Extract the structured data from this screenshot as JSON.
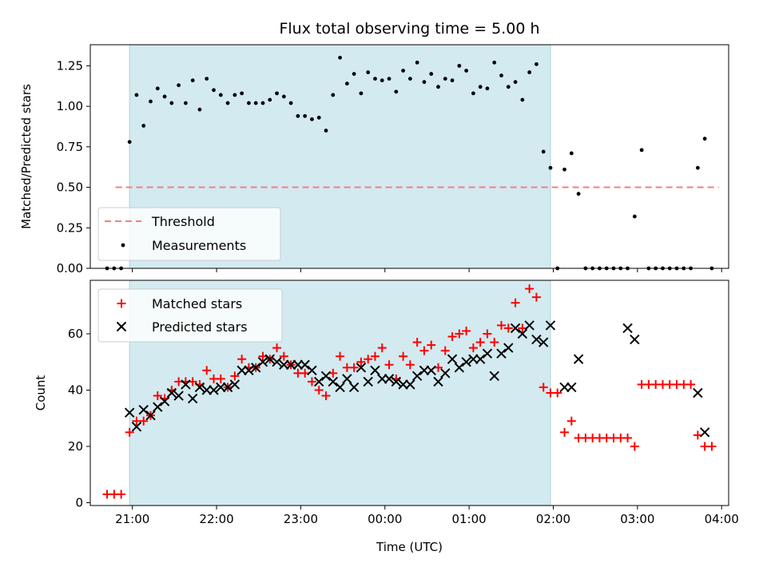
{
  "colors": {
    "observing_shade": "#d3eaf0",
    "threshold": "#f08080",
    "matched": "#ff0000",
    "predicted": "#000000",
    "measurement": "#000000"
  },
  "chart_data": [
    {
      "type": "scatter",
      "title": "Flux total observing time = 5.00 h",
      "xlabel": "",
      "ylabel": "Matched/Predicted stars",
      "xlim": [
        "20:30",
        "04:05"
      ],
      "ylim": [
        0,
        1.38
      ],
      "x_ticks": [
        "21:00",
        "22:00",
        "23:00",
        "00:00",
        "01:00",
        "02:00",
        "03:00",
        "04:00"
      ],
      "y_ticks": [
        "0.00",
        "0.25",
        "0.50",
        "0.75",
        "1.00",
        "1.25"
      ],
      "shaded_span": [
        "20:58",
        "01:58"
      ],
      "threshold": {
        "name": "Threshold",
        "y": 0.5,
        "x_range": [
          "20:48",
          "03:58"
        ]
      },
      "legend_position": "lower-left",
      "series": [
        {
          "name": "Measurements",
          "points": [
            [
              "20:42",
              0
            ],
            [
              "20:47",
              0
            ],
            [
              "20:52",
              0
            ],
            [
              "20:58",
              0.78
            ],
            [
              "21:03",
              1.07
            ],
            [
              "21:08",
              0.88
            ],
            [
              "21:13",
              1.03
            ],
            [
              "21:18",
              1.11
            ],
            [
              "21:23",
              1.06
            ],
            [
              "21:28",
              1.02
            ],
            [
              "21:33",
              1.13
            ],
            [
              "21:38",
              1.02
            ],
            [
              "21:43",
              1.16
            ],
            [
              "21:48",
              0.98
            ],
            [
              "21:53",
              1.17
            ],
            [
              "21:58",
              1.1
            ],
            [
              "22:03",
              1.07
            ],
            [
              "22:08",
              1.02
            ],
            [
              "22:13",
              1.07
            ],
            [
              "22:18",
              1.08
            ],
            [
              "22:23",
              1.02
            ],
            [
              "22:28",
              1.02
            ],
            [
              "22:33",
              1.02
            ],
            [
              "22:38",
              1.04
            ],
            [
              "22:43",
              1.08
            ],
            [
              "22:48",
              1.06
            ],
            [
              "22:53",
              1.02
            ],
            [
              "22:58",
              0.94
            ],
            [
              "23:03",
              0.94
            ],
            [
              "23:08",
              0.92
            ],
            [
              "23:13",
              0.93
            ],
            [
              "23:18",
              0.85
            ],
            [
              "23:23",
              1.07
            ],
            [
              "23:28",
              1.3
            ],
            [
              "23:33",
              1.14
            ],
            [
              "23:38",
              1.2
            ],
            [
              "23:43",
              1.08
            ],
            [
              "23:48",
              1.21
            ],
            [
              "23:53",
              1.17
            ],
            [
              "23:58",
              1.16
            ],
            [
              "00:03",
              1.17
            ],
            [
              "00:08",
              1.09
            ],
            [
              "00:13",
              1.22
            ],
            [
              "00:18",
              1.17
            ],
            [
              "00:23",
              1.27
            ],
            [
              "00:28",
              1.15
            ],
            [
              "00:33",
              1.2
            ],
            [
              "00:38",
              1.12
            ],
            [
              "00:43",
              1.17
            ],
            [
              "00:48",
              1.16
            ],
            [
              "00:53",
              1.25
            ],
            [
              "00:58",
              1.22
            ],
            [
              "01:03",
              1.08
            ],
            [
              "01:08",
              1.12
            ],
            [
              "01:13",
              1.11
            ],
            [
              "01:18",
              1.27
            ],
            [
              "01:23",
              1.19
            ],
            [
              "01:28",
              1.12
            ],
            [
              "01:33",
              1.15
            ],
            [
              "01:38",
              1.04
            ],
            [
              "01:43",
              1.21
            ],
            [
              "01:48",
              1.26
            ],
            [
              "01:53",
              0.72
            ],
            [
              "01:58",
              0.62
            ],
            [
              "02:03",
              0
            ],
            [
              "02:08",
              0.61
            ],
            [
              "02:13",
              0.71
            ],
            [
              "02:18",
              0.46
            ],
            [
              "02:23",
              0
            ],
            [
              "02:28",
              0
            ],
            [
              "02:33",
              0
            ],
            [
              "02:38",
              0
            ],
            [
              "02:43",
              0
            ],
            [
              "02:48",
              0
            ],
            [
              "02:53",
              0
            ],
            [
              "02:58",
              0.32
            ],
            [
              "03:03",
              0.73
            ],
            [
              "03:08",
              0
            ],
            [
              "03:13",
              0
            ],
            [
              "03:18",
              0
            ],
            [
              "03:23",
              0
            ],
            [
              "03:28",
              0
            ],
            [
              "03:33",
              0
            ],
            [
              "03:38",
              0
            ],
            [
              "03:43",
              0.62
            ],
            [
              "03:48",
              0.8
            ],
            [
              "03:53",
              0
            ]
          ]
        }
      ]
    },
    {
      "type": "scatter",
      "title": "",
      "xlabel": "Time (UTC)",
      "ylabel": "Count",
      "xlim": [
        "20:30",
        "04:05"
      ],
      "ylim": [
        -1,
        79
      ],
      "x_ticks": [
        "21:00",
        "22:00",
        "23:00",
        "00:00",
        "01:00",
        "02:00",
        "03:00",
        "04:00"
      ],
      "y_ticks": [
        "0",
        "20",
        "40",
        "60"
      ],
      "shaded_span": [
        "20:58",
        "01:58"
      ],
      "legend_position": "upper-left",
      "series": [
        {
          "name": "Matched stars",
          "marker": "plus",
          "points": [
            [
              "20:42",
              3
            ],
            [
              "20:47",
              3
            ],
            [
              "20:52",
              3
            ],
            [
              "20:58",
              25
            ],
            [
              "21:03",
              29
            ],
            [
              "21:08",
              29
            ],
            [
              "21:13",
              31
            ],
            [
              "21:18",
              38
            ],
            [
              "21:23",
              37
            ],
            [
              "21:28",
              40
            ],
            [
              "21:33",
              43
            ],
            [
              "21:38",
              43
            ],
            [
              "21:43",
              43
            ],
            [
              "21:48",
              42
            ],
            [
              "21:53",
              47
            ],
            [
              "21:58",
              44
            ],
            [
              "22:03",
              44
            ],
            [
              "22:08",
              41
            ],
            [
              "22:13",
              45
            ],
            [
              "22:18",
              51
            ],
            [
              "22:23",
              48
            ],
            [
              "22:28",
              48
            ],
            [
              "22:33",
              52
            ],
            [
              "22:38",
              51
            ],
            [
              "22:43",
              55
            ],
            [
              "22:48",
              52
            ],
            [
              "22:53",
              49
            ],
            [
              "22:58",
              46
            ],
            [
              "23:03",
              46
            ],
            [
              "23:08",
              43
            ],
            [
              "23:13",
              40
            ],
            [
              "23:18",
              38
            ],
            [
              "23:23",
              46
            ],
            [
              "23:28",
              52
            ],
            [
              "23:33",
              48
            ],
            [
              "23:38",
              48
            ],
            [
              "23:43",
              50
            ],
            [
              "23:48",
              51
            ],
            [
              "23:53",
              52
            ],
            [
              "23:58",
              55
            ],
            [
              "00:03",
              49
            ],
            [
              "00:08",
              44
            ],
            [
              "00:13",
              52
            ],
            [
              "00:18",
              49
            ],
            [
              "00:23",
              57
            ],
            [
              "00:28",
              54
            ],
            [
              "00:33",
              56
            ],
            [
              "00:38",
              48
            ],
            [
              "00:43",
              54
            ],
            [
              "00:48",
              59
            ],
            [
              "00:53",
              60
            ],
            [
              "00:58",
              61
            ],
            [
              "01:03",
              55
            ],
            [
              "01:08",
              57
            ],
            [
              "01:13",
              60
            ],
            [
              "01:18",
              57
            ],
            [
              "01:23",
              63
            ],
            [
              "01:28",
              62
            ],
            [
              "01:33",
              71
            ],
            [
              "01:38",
              62
            ],
            [
              "01:43",
              76
            ],
            [
              "01:48",
              73
            ],
            [
              "01:53",
              41
            ],
            [
              "01:58",
              39
            ],
            [
              "02:03",
              39
            ],
            [
              "02:08",
              25
            ],
            [
              "02:13",
              29
            ],
            [
              "02:18",
              23
            ],
            [
              "02:23",
              23
            ],
            [
              "02:28",
              23
            ],
            [
              "02:33",
              23
            ],
            [
              "02:38",
              23
            ],
            [
              "02:43",
              23
            ],
            [
              "02:48",
              23
            ],
            [
              "02:53",
              23
            ],
            [
              "02:58",
              20
            ],
            [
              "03:03",
              42
            ],
            [
              "03:08",
              42
            ],
            [
              "03:13",
              42
            ],
            [
              "03:18",
              42
            ],
            [
              "03:23",
              42
            ],
            [
              "03:28",
              42
            ],
            [
              "03:33",
              42
            ],
            [
              "03:38",
              42
            ],
            [
              "03:43",
              24
            ],
            [
              "03:48",
              20
            ],
            [
              "03:53",
              20
            ]
          ]
        },
        {
          "name": "Predicted stars",
          "marker": "x",
          "points": [
            [
              "20:58",
              32
            ],
            [
              "21:03",
              27
            ],
            [
              "21:08",
              33
            ],
            [
              "21:13",
              31
            ],
            [
              "21:18",
              34
            ],
            [
              "21:23",
              36
            ],
            [
              "21:28",
              39
            ],
            [
              "21:33",
              38
            ],
            [
              "21:38",
              42
            ],
            [
              "21:43",
              37
            ],
            [
              "21:48",
              41
            ],
            [
              "21:53",
              40
            ],
            [
              "21:58",
              40
            ],
            [
              "22:03",
              41
            ],
            [
              "22:08",
              41
            ],
            [
              "22:13",
              42
            ],
            [
              "22:18",
              47
            ],
            [
              "22:23",
              47
            ],
            [
              "22:28",
              48
            ],
            [
              "22:33",
              50
            ],
            [
              "22:38",
              51
            ],
            [
              "22:43",
              50
            ],
            [
              "22:48",
              49
            ],
            [
              "22:53",
              49
            ],
            [
              "22:58",
              49
            ],
            [
              "23:03",
              49
            ],
            [
              "23:08",
              47
            ],
            [
              "23:13",
              43
            ],
            [
              "23:18",
              45
            ],
            [
              "23:23",
              43
            ],
            [
              "23:28",
              41
            ],
            [
              "23:33",
              44
            ],
            [
              "23:38",
              41
            ],
            [
              "23:43",
              48
            ],
            [
              "23:48",
              43
            ],
            [
              "23:53",
              47
            ],
            [
              "23:58",
              44
            ],
            [
              "00:03",
              44
            ],
            [
              "00:08",
              43
            ],
            [
              "00:13",
              42
            ],
            [
              "00:18",
              42
            ],
            [
              "00:23",
              45
            ],
            [
              "00:28",
              47
            ],
            [
              "00:33",
              47
            ],
            [
              "00:38",
              43
            ],
            [
              "00:43",
              46
            ],
            [
              "00:48",
              51
            ],
            [
              "00:53",
              48
            ],
            [
              "00:58",
              50
            ],
            [
              "01:03",
              51
            ],
            [
              "01:08",
              51
            ],
            [
              "01:13",
              53
            ],
            [
              "01:18",
              45
            ],
            [
              "01:23",
              53
            ],
            [
              "01:28",
              55
            ],
            [
              "01:33",
              62
            ],
            [
              "01:38",
              60
            ],
            [
              "01:43",
              63
            ],
            [
              "01:48",
              58
            ],
            [
              "01:53",
              57
            ],
            [
              "01:58",
              63
            ],
            [
              "02:08",
              41
            ],
            [
              "02:13",
              41
            ],
            [
              "02:18",
              51
            ],
            [
              "02:53",
              62
            ],
            [
              "02:58",
              58
            ],
            [
              "03:43",
              39
            ],
            [
              "03:48",
              25
            ]
          ]
        }
      ]
    }
  ]
}
